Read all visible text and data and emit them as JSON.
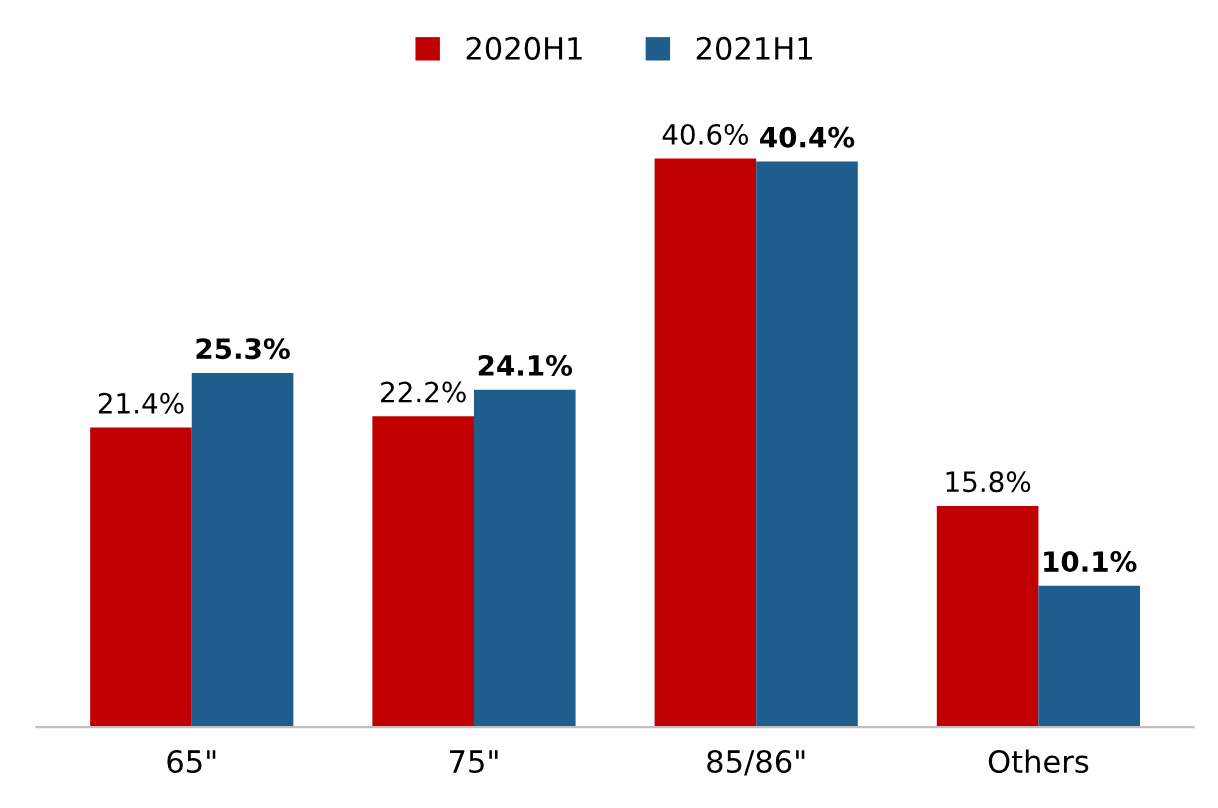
{
  "chart_data": {
    "type": "bar",
    "categories": [
      "65\"",
      "75\"",
      "85/86\"",
      "Others"
    ],
    "series": [
      {
        "name": "2020H1",
        "color": "#c00000",
        "values": [
          21.4,
          22.2,
          40.6,
          15.8
        ],
        "value_labels": [
          "21.4%",
          "22.2%",
          "40.6%",
          "15.8%"
        ]
      },
      {
        "name": "2021H1",
        "color": "#1f5d8c",
        "values": [
          25.3,
          24.1,
          40.4,
          10.1
        ],
        "value_labels": [
          "25.3%",
          "24.1%",
          "40.4%",
          "10.1%"
        ]
      }
    ],
    "legend": "top",
    "grid": false
  }
}
